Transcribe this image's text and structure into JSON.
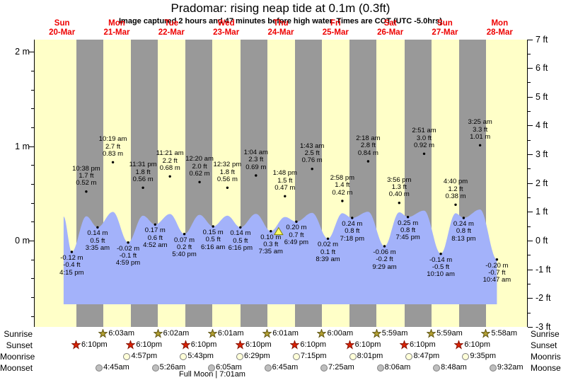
{
  "title": "Pradomar: rising neap tide at 0.1m (0.3ft)",
  "subtitle": "Image captured 2 hours and 47 minutes before high water. Times are COT (UTC -5.0hrs)",
  "days": [
    {
      "name": "Sun",
      "date": "20-Mar"
    },
    {
      "name": "Mon",
      "date": "21-Mar"
    },
    {
      "name": "Tue",
      "date": "22-Mar"
    },
    {
      "name": "Wed",
      "date": "23-Mar"
    },
    {
      "name": "Thu",
      "date": "24-Mar"
    },
    {
      "name": "Fri",
      "date": "25-Mar"
    },
    {
      "name": "Sat",
      "date": "26-Mar"
    },
    {
      "name": "Sun",
      "date": "27-Mar"
    },
    {
      "name": "Mon",
      "date": "28-Mar"
    }
  ],
  "y_axis_left_labels": [
    {
      "text": "2 m",
      "value": 2
    },
    {
      "text": "1 m",
      "value": 1
    },
    {
      "text": "0 m",
      "value": 0
    }
  ],
  "y_axis_right_labels": [
    {
      "text": "7 ft",
      "value": 7
    },
    {
      "text": "6 ft",
      "value": 6
    },
    {
      "text": "5 ft",
      "value": 5
    },
    {
      "text": "4 ft",
      "value": 4
    },
    {
      "text": "3 ft",
      "value": 3
    },
    {
      "text": "2 ft",
      "value": 2
    },
    {
      "text": "1 ft",
      "value": 1
    },
    {
      "text": "0 ft",
      "value": 0
    },
    {
      "text": "-1 ft",
      "value": -1
    },
    {
      "text": "-2 ft",
      "value": -2
    },
    {
      "text": "-3 ft",
      "value": -3
    }
  ],
  "chart_data": {
    "type": "area",
    "title": "Pradomar: rising neap tide at 0.1m (0.3ft)",
    "ylabel_left_unit": "m",
    "ylabel_right_unit": "ft",
    "ylim_m": [
      -0.91,
      2.13
    ],
    "num_days": 9,
    "events": [
      {
        "day": 0,
        "time": "4:15 pm",
        "type": "low",
        "height_m": -0.12,
        "height_ft": -0.4
      },
      {
        "day": 0,
        "time": "10:38 pm",
        "type": "high",
        "height_m": 0.52,
        "height_ft": 1.7
      },
      {
        "day": 1,
        "time": "3:35 am",
        "type": "low",
        "height_m": 0.14,
        "height_ft": 0.5
      },
      {
        "day": 1,
        "time": "10:19 am",
        "type": "high",
        "height_m": 0.83,
        "height_ft": 2.7
      },
      {
        "day": 1,
        "time": "4:59 pm",
        "type": "low",
        "height_m": -0.02,
        "height_ft": -0.1
      },
      {
        "day": 1,
        "time": "11:31 pm",
        "type": "high",
        "height_m": 0.56,
        "height_ft": 1.8
      },
      {
        "day": 2,
        "time": "4:52 am",
        "type": "low",
        "height_m": 0.17,
        "height_ft": 0.6
      },
      {
        "day": 2,
        "time": "11:21 am",
        "type": "high",
        "height_m": 0.68,
        "height_ft": 2.2
      },
      {
        "day": 2,
        "time": "5:40 pm",
        "type": "low",
        "height_m": 0.07,
        "height_ft": 0.2
      },
      {
        "day": 3,
        "time": "12:20 am",
        "type": "high",
        "height_m": 0.62,
        "height_ft": 2.0
      },
      {
        "day": 3,
        "time": "6:16 am",
        "type": "low",
        "height_m": 0.15,
        "height_ft": 0.5
      },
      {
        "day": 3,
        "time": "12:32 pm",
        "type": "high",
        "height_m": 0.56,
        "height_ft": 1.8
      },
      {
        "day": 3,
        "time": "6:16 pm",
        "type": "low",
        "height_m": 0.14,
        "height_ft": 0.5
      },
      {
        "day": 4,
        "time": "1:04 am",
        "type": "high",
        "height_m": 0.69,
        "height_ft": 2.3
      },
      {
        "day": 4,
        "time": "7:35 am",
        "type": "low",
        "height_m": 0.1,
        "height_ft": 0.3
      },
      {
        "day": 4,
        "time": "1:48 pm",
        "type": "high",
        "height_m": 0.47,
        "height_ft": 1.5
      },
      {
        "day": 4,
        "time": "6:49 pm",
        "type": "low",
        "height_m": 0.2,
        "height_ft": 0.7
      },
      {
        "day": 5,
        "time": "1:43 am",
        "type": "high",
        "height_m": 0.76,
        "height_ft": 2.5
      },
      {
        "day": 5,
        "time": "8:39 am",
        "type": "low",
        "height_m": 0.02,
        "height_ft": 0.1
      },
      {
        "day": 5,
        "time": "2:58 pm",
        "type": "high",
        "height_m": 0.42,
        "height_ft": 1.4
      },
      {
        "day": 5,
        "time": "7:18 pm",
        "type": "low",
        "height_m": 0.24,
        "height_ft": 0.8
      },
      {
        "day": 6,
        "time": "2:18 am",
        "type": "high",
        "height_m": 0.84,
        "height_ft": 2.8
      },
      {
        "day": 6,
        "time": "9:29 am",
        "type": "low",
        "height_m": -0.06,
        "height_ft": -0.2
      },
      {
        "day": 6,
        "time": "3:56 pm",
        "type": "high",
        "height_m": 0.4,
        "height_ft": 1.3
      },
      {
        "day": 6,
        "time": "7:45 pm",
        "type": "low",
        "height_m": 0.25,
        "height_ft": 0.8
      },
      {
        "day": 7,
        "time": "2:51 am",
        "type": "high",
        "height_m": 0.92,
        "height_ft": 3.0
      },
      {
        "day": 7,
        "time": "10:10 am",
        "type": "low",
        "height_m": -0.14,
        "height_ft": -0.5
      },
      {
        "day": 7,
        "time": "4:40 pm",
        "type": "high",
        "height_m": 0.38,
        "height_ft": 1.2
      },
      {
        "day": 7,
        "time": "8:13 pm",
        "type": "low",
        "height_m": 0.24,
        "height_ft": 0.8
      },
      {
        "day": 8,
        "time": "3:25 am",
        "type": "high",
        "height_m": 1.01,
        "height_ft": 3.3
      },
      {
        "day": 8,
        "time": "10:47 am",
        "type": "low",
        "height_m": -0.2,
        "height_ft": -0.7
      }
    ],
    "current_marker": {
      "day": 4,
      "hour": 11.02,
      "height_m": 0.1
    },
    "curve_start": {
      "day": 0,
      "hour": 12.7,
      "height_m": 0.255
    },
    "night_bands": {
      "sunset_hour": 18.17,
      "sunrise_hour": 6.05,
      "nights": [
        0,
        1,
        2,
        3,
        4,
        5,
        6,
        7
      ]
    }
  },
  "astro": {
    "row_labels": [
      "Sunrise",
      "Sunset",
      "Moonrise",
      "Moonset"
    ],
    "sunrise": [
      {
        "day": 1,
        "time": "6:03am"
      },
      {
        "day": 2,
        "time": "6:02am"
      },
      {
        "day": 3,
        "time": "6:01am"
      },
      {
        "day": 4,
        "time": "6:01am"
      },
      {
        "day": 5,
        "time": "6:00am"
      },
      {
        "day": 6,
        "time": "5:59am"
      },
      {
        "day": 7,
        "time": "5:59am"
      },
      {
        "day": 8,
        "time": "5:58am"
      }
    ],
    "sunset": [
      {
        "day": 0,
        "time": "6:10pm"
      },
      {
        "day": 1,
        "time": "6:10pm"
      },
      {
        "day": 2,
        "time": "6:10pm"
      },
      {
        "day": 3,
        "time": "6:10pm"
      },
      {
        "day": 4,
        "time": "6:10pm"
      },
      {
        "day": 5,
        "time": "6:10pm"
      },
      {
        "day": 6,
        "time": "6:10pm"
      },
      {
        "day": 7,
        "time": "6:10pm"
      }
    ],
    "moonrise": [
      {
        "day": 1,
        "time": "4:57pm"
      },
      {
        "day": 2,
        "time": "5:43pm"
      },
      {
        "day": 3,
        "time": "6:29pm"
      },
      {
        "day": 4,
        "time": "7:15pm"
      },
      {
        "day": 5,
        "time": "8:01pm"
      },
      {
        "day": 6,
        "time": "8:47pm"
      },
      {
        "day": 7,
        "time": "9:35pm"
      }
    ],
    "moonset": [
      {
        "day": 1,
        "time": "4:45am"
      },
      {
        "day": 2,
        "time": "5:26am"
      },
      {
        "day": 3,
        "time": "6:05am"
      },
      {
        "day": 4,
        "time": "6:45am"
      },
      {
        "day": 5,
        "time": "7:25am"
      },
      {
        "day": 6,
        "time": "8:06am"
      },
      {
        "day": 7,
        "time": "8:48am"
      },
      {
        "day": 8,
        "time": "9:32am"
      }
    ],
    "full_moon": "Full Moon | 7:01am"
  },
  "colors": {
    "plot_day": "#ffffc8",
    "plot_night": "#999999",
    "tide_area": "#a3b2fa",
    "day_label": "#ee0000",
    "dot": "#000000",
    "marker_fill": "#ffff66",
    "marker_stroke": "#808000",
    "sunrise_star_fill": "#b3a033",
    "sunrise_star_stroke": "#5f5410",
    "sunset_star_fill": "#dd2200",
    "sunset_star_stroke": "#881100",
    "moonrise_fill": "#ffffd8",
    "moonset_fill": "#bfbfbf"
  }
}
